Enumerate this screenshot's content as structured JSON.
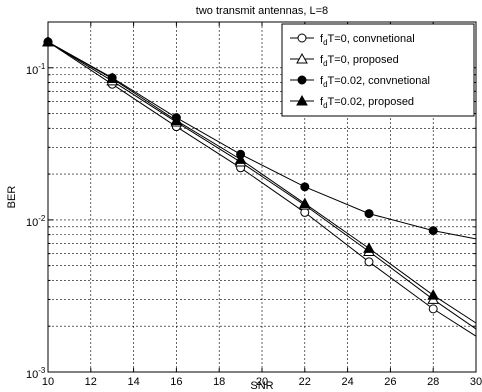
{
  "chart_data": {
    "type": "line",
    "title": "two transmit antennas, L=8",
    "xlabel": "SNR",
    "ylabel": "BER",
    "xlim": [
      10,
      30
    ],
    "ylim": [
      0.001,
      0.2
    ],
    "yscale": "log",
    "grid": true,
    "grid_style": "dashed",
    "legend_position": "top-right",
    "x_ticks": [
      10,
      12,
      14,
      16,
      18,
      20,
      22,
      24,
      26,
      28,
      30
    ],
    "x_tick_labels": [
      "10",
      "12",
      "14",
      "16",
      "18",
      "20",
      "22",
      "24",
      "26",
      "28",
      "30"
    ],
    "y_tick_labels": [
      {
        "value": 0.1,
        "base": "10",
        "exp": "-1"
      },
      {
        "value": 0.01,
        "base": "10",
        "exp": "-2"
      },
      {
        "value": 0.001,
        "base": "10",
        "exp": "-3"
      }
    ],
    "series": [
      {
        "name_main": "f",
        "name_sub": "d",
        "name_rest": "T=0, convnetional",
        "marker": "circle-open",
        "line_x": [
          10,
          13,
          16,
          19,
          22,
          25,
          28,
          30
        ],
        "line_y": [
          0.148,
          0.078,
          0.041,
          0.022,
          0.0112,
          0.0053,
          0.0026,
          0.00172
        ],
        "marker_x": [
          10,
          13,
          16,
          19,
          22,
          25,
          28
        ],
        "marker_y": [
          0.148,
          0.078,
          0.041,
          0.022,
          0.0112,
          0.0053,
          0.0026
        ]
      },
      {
        "name_main": "f",
        "name_sub": "d",
        "name_rest": "T=0, proposed",
        "marker": "triangle-open",
        "line_x": [
          10,
          13,
          16,
          19,
          22,
          25,
          28,
          30
        ],
        "line_y": [
          0.148,
          0.082,
          0.044,
          0.024,
          0.0125,
          0.0062,
          0.003,
          0.00192
        ],
        "marker_x": [
          10,
          13,
          16,
          19,
          22,
          25,
          28
        ],
        "marker_y": [
          0.148,
          0.082,
          0.044,
          0.024,
          0.0125,
          0.0062,
          0.003
        ]
      },
      {
        "name_main": "f",
        "name_sub": "d",
        "name_rest": "T=0.02, convnetional",
        "marker": "circle-filled",
        "line_x": [
          10,
          13,
          16,
          19,
          22,
          25,
          28,
          30
        ],
        "line_y": [
          0.148,
          0.086,
          0.047,
          0.027,
          0.0165,
          0.011,
          0.0085,
          0.0075
        ],
        "marker_x": [
          10,
          13,
          16,
          19,
          22,
          25,
          28
        ],
        "marker_y": [
          0.148,
          0.086,
          0.047,
          0.027,
          0.0165,
          0.011,
          0.0085
        ]
      },
      {
        "name_main": "f",
        "name_sub": "d",
        "name_rest": "T=0.02, proposed",
        "marker": "triangle-filled",
        "line_x": [
          10,
          13,
          16,
          19,
          22,
          25,
          28,
          30
        ],
        "line_y": [
          0.148,
          0.085,
          0.045,
          0.025,
          0.0128,
          0.0065,
          0.0032,
          0.0021
        ],
        "marker_x": [
          10,
          13,
          16,
          19,
          22,
          25,
          28
        ],
        "marker_y": [
          0.148,
          0.085,
          0.045,
          0.025,
          0.0128,
          0.0065,
          0.0032
        ]
      }
    ]
  }
}
